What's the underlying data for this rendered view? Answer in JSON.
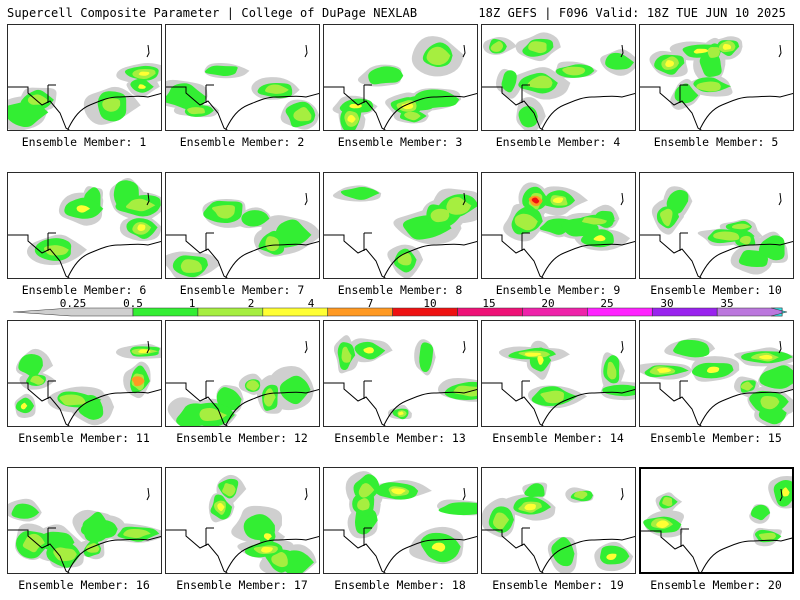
{
  "header": {
    "left": "Supercell Composite Parameter | College of DuPage NEXLAB",
    "right": "18Z GEFS | F096 Valid: 18Z TUE JUN 10 2025"
  },
  "colorbar": {
    "labels": [
      "0.25",
      "0.5",
      "1",
      "2",
      "4",
      "7",
      "10",
      "15",
      "20",
      "25",
      "30",
      "35"
    ],
    "colors": [
      "#cfcfcf",
      "#33ee33",
      "#a6ee40",
      "#ffff33",
      "#ff9922",
      "#ee1111",
      "#ee1177",
      "#ee22aa",
      "#ff22ff",
      "#9922ee",
      "#bb77dd",
      "#33e8ee"
    ]
  },
  "legend_colors": {
    "gray": "#cfcfcf",
    "green": "#33ee33",
    "lime": "#a6ee40",
    "yellow": "#ffff33",
    "orange": "#ff9922",
    "red": "#ee1111",
    "outline": "#000000"
  },
  "members": [
    {
      "label": "Ensemble Member: 1",
      "selected": false
    },
    {
      "label": "Ensemble Member: 2",
      "selected": false
    },
    {
      "label": "Ensemble Member: 3",
      "selected": false
    },
    {
      "label": "Ensemble Member: 4",
      "selected": false
    },
    {
      "label": "Ensemble Member: 5",
      "selected": false
    },
    {
      "label": "Ensemble Member: 6",
      "selected": false
    },
    {
      "label": "Ensemble Member: 7",
      "selected": false
    },
    {
      "label": "Ensemble Member: 8",
      "selected": false
    },
    {
      "label": "Ensemble Member: 9",
      "selected": false
    },
    {
      "label": "Ensemble Member: 10",
      "selected": false
    },
    {
      "label": "Ensemble Member: 11",
      "selected": false
    },
    {
      "label": "Ensemble Member: 12",
      "selected": false
    },
    {
      "label": "Ensemble Member: 13",
      "selected": false
    },
    {
      "label": "Ensemble Member: 14",
      "selected": false
    },
    {
      "label": "Ensemble Member: 15",
      "selected": false
    },
    {
      "label": "Ensemble Member: 16",
      "selected": false
    },
    {
      "label": "Ensemble Member: 17",
      "selected": false
    },
    {
      "label": "Ensemble Member: 18",
      "selected": false
    },
    {
      "label": "Ensemble Member: 19",
      "selected": false
    },
    {
      "label": "Ensemble Member: 20",
      "selected": true
    }
  ]
}
